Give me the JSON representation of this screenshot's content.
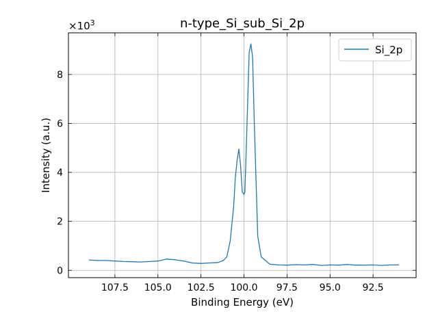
{
  "chart_data": {
    "type": "line",
    "title": "n-type_Si_sub_Si_2p",
    "xlabel": "Binding Energy (eV)",
    "ylabel": "Intensity (a.u.)",
    "y_scale_label": "×10",
    "y_scale_exponent": "3",
    "x_inverted": true,
    "xlim": [
      110.2,
      90.0
    ],
    "ylim": [
      -0.3,
      9.7
    ],
    "x_ticks": [
      107.5,
      105.0,
      102.5,
      100.0,
      97.5,
      95.0,
      92.5
    ],
    "x_tick_labels": [
      "107.5",
      "105.0",
      "102.5",
      "100.0",
      "97.5",
      "95.0",
      "92.5"
    ],
    "y_ticks": [
      0,
      2,
      4,
      6,
      8
    ],
    "y_tick_labels": [
      "0",
      "2",
      "4",
      "6",
      "8"
    ],
    "grid": true,
    "legend_position": "top-right",
    "series": [
      {
        "name": "Si_2p",
        "color": "#1f77b4",
        "x": [
          109.0,
          108.5,
          108.0,
          107.5,
          107.0,
          106.5,
          106.0,
          105.5,
          105.0,
          104.5,
          104.0,
          103.5,
          103.0,
          102.5,
          102.0,
          101.5,
          101.2,
          101.0,
          100.8,
          100.6,
          100.5,
          100.4,
          100.3,
          100.2,
          100.1,
          100.0,
          99.95,
          99.9,
          99.8,
          99.7,
          99.6,
          99.5,
          99.4,
          99.2,
          99.0,
          98.5,
          98.0,
          97.5,
          97.0,
          96.5,
          96.0,
          95.5,
          95.0,
          94.5,
          94.0,
          93.5,
          93.0,
          92.5,
          92.0,
          91.5,
          91.0
        ],
        "y": [
          0.42,
          0.4,
          0.4,
          0.38,
          0.36,
          0.35,
          0.34,
          0.36,
          0.38,
          0.46,
          0.43,
          0.38,
          0.3,
          0.28,
          0.3,
          0.32,
          0.4,
          0.55,
          1.2,
          2.6,
          3.8,
          4.5,
          4.95,
          4.3,
          3.2,
          3.1,
          3.2,
          4.2,
          6.5,
          8.9,
          9.25,
          8.7,
          6.0,
          1.4,
          0.55,
          0.25,
          0.22,
          0.21,
          0.23,
          0.22,
          0.24,
          0.2,
          0.22,
          0.21,
          0.24,
          0.21,
          0.21,
          0.22,
          0.2,
          0.22,
          0.22
        ]
      }
    ]
  }
}
